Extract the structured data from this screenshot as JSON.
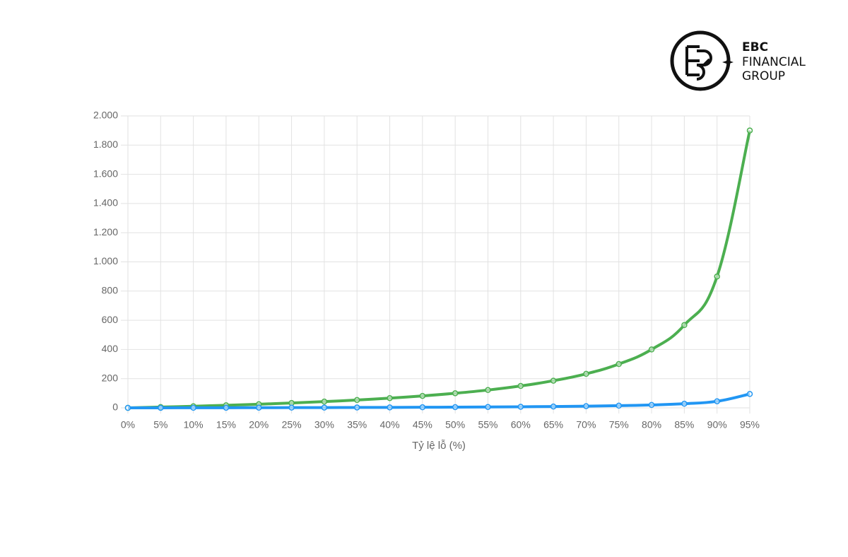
{
  "logo": {
    "line1": "EBC",
    "line2": "FINANCIAL",
    "line3": "GROUP"
  },
  "chart_data": {
    "type": "line",
    "x_label": "Tỷ lệ lỗ (%)",
    "categories": [
      "0%",
      "5%",
      "10%",
      "15%",
      "20%",
      "25%",
      "30%",
      "35%",
      "40%",
      "45%",
      "50%",
      "55%",
      "60%",
      "65%",
      "70%",
      "75%",
      "80%",
      "85%",
      "90%",
      "95%"
    ],
    "series": [
      {
        "color": "#4caf50",
        "values": [
          0,
          5.3,
          11.1,
          17.6,
          25,
          33.3,
          42.9,
          53.8,
          66.7,
          81.8,
          100,
          122,
          150,
          186,
          233,
          300,
          400,
          567,
          900,
          1900
        ]
      },
      {
        "color": "#2196f3",
        "values": [
          0,
          0.3,
          0.6,
          0.9,
          1.3,
          1.7,
          2.1,
          2.7,
          3.3,
          4.1,
          5,
          6.1,
          7.5,
          9.3,
          11.7,
          15,
          20,
          28.3,
          45,
          95
        ]
      }
    ],
    "ylim": [
      0,
      2000
    ],
    "yticks": [
      0,
      200,
      400,
      600,
      800,
      {
        "value": 1000,
        "label": "1.000"
      },
      {
        "value": 1200,
        "label": "1.200"
      },
      {
        "value": 1400,
        "label": "1.400"
      },
      {
        "value": 1600,
        "label": "1.600"
      },
      {
        "value": 1800,
        "label": "1.800"
      },
      {
        "value": 2000,
        "label": "2.000"
      }
    ],
    "grid": true
  }
}
